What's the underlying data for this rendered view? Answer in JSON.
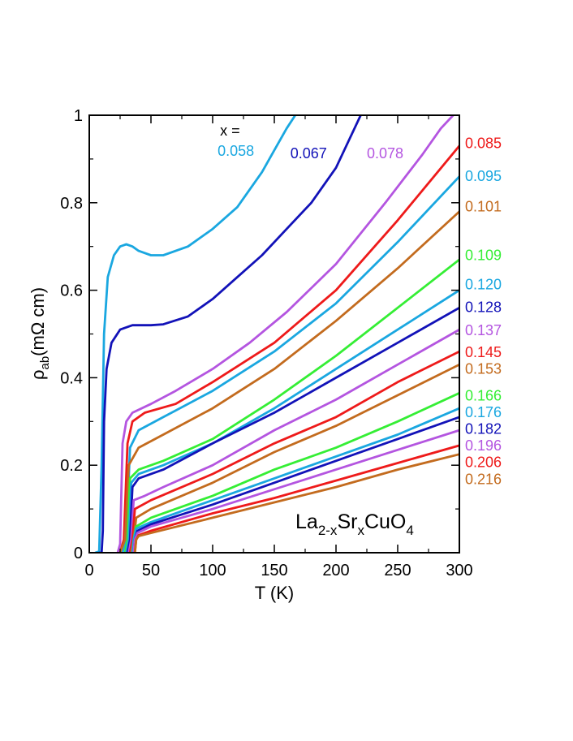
{
  "chart_data": {
    "type": "line",
    "title": "",
    "xlabel": "T (K)",
    "ylabel": {
      "rho": "ρ",
      "sub": "ab",
      "rest": "(mΩ cm)"
    },
    "xlim": [
      0,
      300
    ],
    "ylim": [
      0,
      1
    ],
    "xticks": [
      "0",
      "50",
      "100",
      "150",
      "200",
      "250",
      "300"
    ],
    "yticks": [
      "0",
      "0.2",
      "0.4",
      "0.6",
      "0.8",
      "1"
    ],
    "grid": false,
    "x_label_header": "x =",
    "annotation": {
      "p1": "La",
      "s1": "2-x",
      "p2": "Sr",
      "s2": "x",
      "p3": "CuO",
      "s3": "4"
    },
    "series": [
      {
        "name": "0.058",
        "color": "#1aa7e0",
        "points": [
          [
            5,
            0
          ],
          [
            8,
            0.003
          ],
          [
            10,
            0.2
          ],
          [
            12,
            0.5
          ],
          [
            15,
            0.63
          ],
          [
            20,
            0.68
          ],
          [
            25,
            0.7
          ],
          [
            30,
            0.705
          ],
          [
            35,
            0.7
          ],
          [
            40,
            0.69
          ],
          [
            50,
            0.68
          ],
          [
            60,
            0.68
          ],
          [
            80,
            0.7
          ],
          [
            100,
            0.74
          ],
          [
            120,
            0.79
          ],
          [
            140,
            0.87
          ],
          [
            150,
            0.92
          ],
          [
            160,
            0.97
          ],
          [
            167,
            1.0
          ]
        ]
      },
      {
        "name": "0.067",
        "color": "#1212b8",
        "points": [
          [
            8,
            0
          ],
          [
            10,
            0
          ],
          [
            11,
            0.05
          ],
          [
            12,
            0.3
          ],
          [
            14,
            0.42
          ],
          [
            18,
            0.48
          ],
          [
            25,
            0.51
          ],
          [
            35,
            0.52
          ],
          [
            50,
            0.52
          ],
          [
            60,
            0.522
          ],
          [
            80,
            0.54
          ],
          [
            100,
            0.58
          ],
          [
            120,
            0.63
          ],
          [
            140,
            0.68
          ],
          [
            160,
            0.74
          ],
          [
            180,
            0.8
          ],
          [
            200,
            0.88
          ],
          [
            210,
            0.94
          ],
          [
            220,
            1.0
          ]
        ]
      },
      {
        "name": "0.078",
        "color": "#b455e0",
        "points": [
          [
            23,
            0
          ],
          [
            25,
            0.02
          ],
          [
            27,
            0.25
          ],
          [
            30,
            0.3
          ],
          [
            35,
            0.32
          ],
          [
            50,
            0.34
          ],
          [
            70,
            0.37
          ],
          [
            100,
            0.42
          ],
          [
            130,
            0.48
          ],
          [
            160,
            0.55
          ],
          [
            200,
            0.66
          ],
          [
            240,
            0.8
          ],
          [
            270,
            0.91
          ],
          [
            285,
            0.97
          ],
          [
            295,
            1.0
          ]
        ]
      },
      {
        "name": "0.085",
        "color": "#ee1a1a",
        "points": [
          [
            25,
            0
          ],
          [
            28,
            0.03
          ],
          [
            31,
            0.25
          ],
          [
            35,
            0.3
          ],
          [
            45,
            0.32
          ],
          [
            70,
            0.34
          ],
          [
            100,
            0.39
          ],
          [
            150,
            0.48
          ],
          [
            200,
            0.6
          ],
          [
            250,
            0.76
          ],
          [
            300,
            0.93
          ]
        ]
      },
      {
        "name": "0.095",
        "color": "#1aa7e0",
        "points": [
          [
            27,
            0
          ],
          [
            30,
            0.03
          ],
          [
            33,
            0.24
          ],
          [
            40,
            0.28
          ],
          [
            60,
            0.31
          ],
          [
            100,
            0.37
          ],
          [
            150,
            0.46
          ],
          [
            200,
            0.57
          ],
          [
            250,
            0.71
          ],
          [
            300,
            0.86
          ]
        ]
      },
      {
        "name": "0.101",
        "color": "#c36b1e",
        "points": [
          [
            25,
            0
          ],
          [
            29,
            0.03
          ],
          [
            32,
            0.2
          ],
          [
            40,
            0.24
          ],
          [
            60,
            0.27
          ],
          [
            100,
            0.33
          ],
          [
            150,
            0.42
          ],
          [
            200,
            0.53
          ],
          [
            250,
            0.65
          ],
          [
            300,
            0.78
          ]
        ]
      },
      {
        "name": "0.109",
        "color": "#35ee35",
        "points": [
          [
            29,
            0
          ],
          [
            31,
            0.03
          ],
          [
            33,
            0.17
          ],
          [
            40,
            0.19
          ],
          [
            60,
            0.21
          ],
          [
            100,
            0.26
          ],
          [
            150,
            0.35
          ],
          [
            200,
            0.45
          ],
          [
            250,
            0.56
          ],
          [
            300,
            0.67
          ]
        ]
      },
      {
        "name": "0.120",
        "color": "#1aa7e0",
        "points": [
          [
            30,
            0
          ],
          [
            32,
            0.03
          ],
          [
            34,
            0.16
          ],
          [
            40,
            0.18
          ],
          [
            60,
            0.2
          ],
          [
            100,
            0.25
          ],
          [
            150,
            0.33
          ],
          [
            200,
            0.42
          ],
          [
            250,
            0.51
          ],
          [
            300,
            0.6
          ]
        ]
      },
      {
        "name": "0.128",
        "color": "#1212b8",
        "points": [
          [
            31,
            0
          ],
          [
            33,
            0.03
          ],
          [
            35,
            0.15
          ],
          [
            40,
            0.17
          ],
          [
            60,
            0.19
          ],
          [
            100,
            0.25
          ],
          [
            150,
            0.32
          ],
          [
            200,
            0.4
          ],
          [
            250,
            0.48
          ],
          [
            300,
            0.56
          ]
        ]
      },
      {
        "name": "0.137",
        "color": "#b455e0",
        "points": [
          [
            32,
            0
          ],
          [
            34,
            0.03
          ],
          [
            36,
            0.12
          ],
          [
            45,
            0.13
          ],
          [
            60,
            0.15
          ],
          [
            100,
            0.2
          ],
          [
            150,
            0.28
          ],
          [
            200,
            0.35
          ],
          [
            250,
            0.43
          ],
          [
            300,
            0.51
          ]
        ]
      },
      {
        "name": "0.145",
        "color": "#ee1a1a",
        "points": [
          [
            33,
            0
          ],
          [
            35,
            0.03
          ],
          [
            37,
            0.1
          ],
          [
            50,
            0.12
          ],
          [
            100,
            0.18
          ],
          [
            150,
            0.25
          ],
          [
            200,
            0.31
          ],
          [
            250,
            0.39
          ],
          [
            300,
            0.46
          ]
        ]
      },
      {
        "name": "0.153",
        "color": "#c36b1e",
        "points": [
          [
            34,
            0
          ],
          [
            36,
            0.03
          ],
          [
            38,
            0.08
          ],
          [
            50,
            0.1
          ],
          [
            100,
            0.16
          ],
          [
            150,
            0.23
          ],
          [
            200,
            0.29
          ],
          [
            250,
            0.36
          ],
          [
            300,
            0.43
          ]
        ]
      },
      {
        "name": "0.166",
        "color": "#35ee35",
        "points": [
          [
            35,
            0
          ],
          [
            36,
            0.03
          ],
          [
            38,
            0.06
          ],
          [
            50,
            0.08
          ],
          [
            100,
            0.13
          ],
          [
            150,
            0.19
          ],
          [
            200,
            0.24
          ],
          [
            250,
            0.3
          ],
          [
            300,
            0.365
          ]
        ]
      },
      {
        "name": "0.176",
        "color": "#1aa7e0",
        "points": [
          [
            35,
            0
          ],
          [
            36,
            0.03
          ],
          [
            38,
            0.055
          ],
          [
            50,
            0.07
          ],
          [
            100,
            0.12
          ],
          [
            150,
            0.17
          ],
          [
            200,
            0.22
          ],
          [
            250,
            0.27
          ],
          [
            300,
            0.33
          ]
        ]
      },
      {
        "name": "0.182",
        "color": "#1212b8",
        "points": [
          [
            36,
            0
          ],
          [
            37,
            0.03
          ],
          [
            39,
            0.05
          ],
          [
            50,
            0.065
          ],
          [
            100,
            0.11
          ],
          [
            150,
            0.16
          ],
          [
            200,
            0.21
          ],
          [
            250,
            0.26
          ],
          [
            300,
            0.31
          ]
        ]
      },
      {
        "name": "0.196",
        "color": "#b455e0",
        "points": [
          [
            36,
            0
          ],
          [
            37,
            0.03
          ],
          [
            39,
            0.045
          ],
          [
            50,
            0.06
          ],
          [
            100,
            0.1
          ],
          [
            150,
            0.145
          ],
          [
            200,
            0.19
          ],
          [
            250,
            0.235
          ],
          [
            300,
            0.28
          ]
        ]
      },
      {
        "name": "0.206",
        "color": "#ee1a1a",
        "points": [
          [
            37,
            0
          ],
          [
            38,
            0.03
          ],
          [
            40,
            0.04
          ],
          [
            50,
            0.05
          ],
          [
            100,
            0.09
          ],
          [
            150,
            0.125
          ],
          [
            200,
            0.165
          ],
          [
            250,
            0.205
          ],
          [
            300,
            0.245
          ]
        ]
      },
      {
        "name": "0.216",
        "color": "#c36b1e",
        "points": [
          [
            37,
            0
          ],
          [
            38,
            0.03
          ],
          [
            40,
            0.038
          ],
          [
            50,
            0.045
          ],
          [
            100,
            0.08
          ],
          [
            150,
            0.115
          ],
          [
            200,
            0.15
          ],
          [
            250,
            0.19
          ],
          [
            300,
            0.225
          ]
        ]
      }
    ],
    "label_placement": {
      "0.058": {
        "x": 104,
        "y": 0.92
      },
      "0.067": {
        "x": 163,
        "y": 0.915
      },
      "0.078": {
        "x": 225,
        "y": 0.915
      },
      "0.085": {
        "side": "right",
        "y": 0.938
      },
      "0.095": {
        "side": "right",
        "y": 0.863
      },
      "0.101": {
        "side": "right",
        "y": 0.793
      },
      "0.109": {
        "side": "right",
        "y": 0.682
      },
      "0.120": {
        "side": "right",
        "y": 0.615
      },
      "0.128": {
        "side": "right",
        "y": 0.563
      },
      "0.137": {
        "side": "right",
        "y": 0.51
      },
      "0.145": {
        "side": "right",
        "y": 0.46
      },
      "0.153": {
        "side": "right",
        "y": 0.422
      },
      "0.166": {
        "side": "right",
        "y": 0.361
      },
      "0.176": {
        "side": "right",
        "y": 0.323
      },
      "0.182": {
        "side": "right",
        "y": 0.285
      },
      "0.196": {
        "side": "right",
        "y": 0.247
      },
      "0.206": {
        "side": "right",
        "y": 0.209
      },
      "0.216": {
        "side": "right",
        "y": 0.17
      }
    },
    "header_placement": {
      "x": 106,
      "y": 0.965
    }
  }
}
